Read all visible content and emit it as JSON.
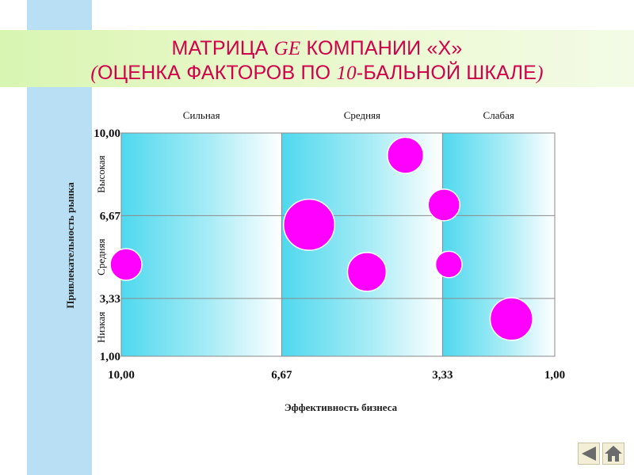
{
  "slide": {
    "title_line1": {
      "pre": "МАТРИЦА ",
      "brand": "GE",
      "post": " КОМПАНИИ «Х»"
    },
    "title_line2": {
      "open": "(",
      "pre": "ОЦЕНКА ФАКТОРОВ ПО ",
      "num": "10",
      "post": "-БАЛЬНОЙ ШКАЛЕ",
      "close": ")"
    }
  },
  "chart_data": {
    "type": "bubble",
    "title": "",
    "xlabel": "Эффективность бизнеса",
    "ylabel": "Привлекательность рынка",
    "xlim": [
      10.0,
      1.0
    ],
    "ylim": [
      1.0,
      10.0
    ],
    "x_reversed": true,
    "x_ticks": [
      "10,00",
      "6,67",
      "3,33",
      "1,00"
    ],
    "y_ticks": [
      "10,00",
      "6,67",
      "3,33",
      "1,00"
    ],
    "column_labels": [
      "Сильная",
      "Средняя",
      "Слабая"
    ],
    "row_labels": [
      "Высокая",
      "Средняя",
      "Низкая"
    ],
    "grid": true,
    "bubble_color": "#ff00ff",
    "zone_color": "#4fd8ee",
    "points": [
      {
        "x": 9.9,
        "y": 4.7,
        "size": 1.0
      },
      {
        "x": 6.1,
        "y": 6.3,
        "size": 2.6
      },
      {
        "x": 4.9,
        "y": 4.4,
        "size": 1.5
      },
      {
        "x": 4.1,
        "y": 9.1,
        "size": 1.3
      },
      {
        "x": 3.3,
        "y": 7.1,
        "size": 1.0
      },
      {
        "x": 3.2,
        "y": 4.7,
        "size": 0.7
      },
      {
        "x": 1.9,
        "y": 2.5,
        "size": 1.8
      }
    ]
  },
  "navigation": {
    "back_icon": "left-arrow-icon",
    "home_icon": "home-icon"
  }
}
